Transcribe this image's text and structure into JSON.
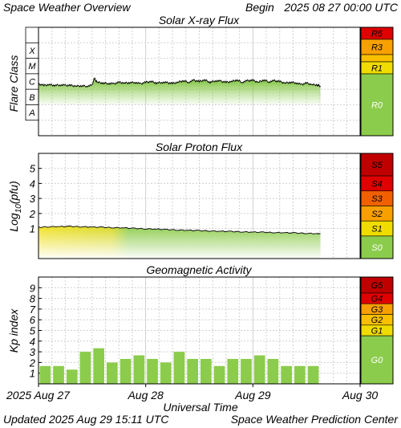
{
  "header": {
    "title": "Space Weather Overview",
    "begin_label": "Begin",
    "begin_value": "2025 08 27 00:00 UTC"
  },
  "footer": {
    "updated_label": "Updated",
    "updated_value": "2025 Aug 29 15:11 UTC",
    "source": "Space Weather Prediction Center"
  },
  "colors": {
    "panel_border": "#000000",
    "grid": "#d0d0d0",
    "data_green": "#8ccc4c",
    "proton_yellow": "#f0e020",
    "scale_green": "#8ccc4c",
    "scale_yellow": "#f0dc00",
    "scale_orange": "#f8a000",
    "scale_red_orange": "#f06000",
    "scale_red": "#e00000",
    "scale_dark_red": "#c00000"
  },
  "chart_data": [
    {
      "type": "area",
      "title": "Solar X-ray Flux",
      "ylabel": "Flare Class",
      "y_scale": "log",
      "x_unit": "days since 2025 Aug 27 00:00 UTC",
      "xlim": [
        0,
        3
      ],
      "ylim": [
        -9,
        -2
      ],
      "class_labels": [
        "A",
        "B",
        "C",
        "M",
        "X"
      ],
      "scale_labels": [
        "R5",
        "R3",
        "R1",
        "R0"
      ],
      "series": [
        {
          "name": "",
          "x": [
            0,
            0.05,
            0.1,
            0.15,
            0.2,
            0.25,
            0.3,
            0.35,
            0.4,
            0.45,
            0.5,
            0.52,
            0.55,
            0.6,
            0.65,
            0.7,
            0.75,
            0.8,
            0.85,
            0.9,
            0.95,
            1.0,
            1.05,
            1.1,
            1.15,
            1.2,
            1.25,
            1.3,
            1.35,
            1.4,
            1.45,
            1.5,
            1.55,
            1.6,
            1.65,
            1.7,
            1.75,
            1.8,
            1.85,
            1.9,
            1.95,
            2.0,
            2.05,
            2.1,
            2.15,
            2.2,
            2.25,
            2.3,
            2.35,
            2.4,
            2.45,
            2.5,
            2.55,
            2.6,
            2.63
          ],
          "y": [
            -5.65,
            -5.75,
            -5.7,
            -5.75,
            -5.72,
            -5.75,
            -5.75,
            -5.8,
            -5.78,
            -5.8,
            -5.75,
            -5.3,
            -5.55,
            -5.6,
            -5.62,
            -5.65,
            -5.55,
            -5.6,
            -5.58,
            -5.55,
            -5.65,
            -5.55,
            -5.5,
            -5.6,
            -5.55,
            -5.58,
            -5.62,
            -5.55,
            -5.45,
            -5.55,
            -5.42,
            -5.5,
            -5.4,
            -5.55,
            -5.45,
            -5.48,
            -5.55,
            -5.5,
            -5.4,
            -5.55,
            -5.45,
            -5.42,
            -5.55,
            -5.4,
            -5.52,
            -5.45,
            -5.5,
            -5.6,
            -5.55,
            -5.58,
            -5.7,
            -5.6,
            -5.7,
            -5.72,
            -5.8
          ]
        }
      ]
    },
    {
      "type": "area",
      "title": "Solar Proton Flux",
      "ylabel": "Log10(pfu)",
      "xlim": [
        0,
        3
      ],
      "ylim": [
        -1,
        6
      ],
      "yticks": [
        1,
        2,
        3,
        4,
        5
      ],
      "scale_labels": [
        "S5",
        "S4",
        "S3",
        "S2",
        "S1",
        "S0"
      ],
      "series": [
        {
          "name": "",
          "x": [
            0,
            0.1,
            0.2,
            0.3,
            0.4,
            0.5,
            0.6,
            0.7,
            0.8,
            0.9,
            1.0,
            1.1,
            1.2,
            1.3,
            1.4,
            1.5,
            1.6,
            1.7,
            1.8,
            1.9,
            2.0,
            2.1,
            2.2,
            2.3,
            2.4,
            2.5,
            2.6,
            2.63
          ],
          "y": [
            1.08,
            1.12,
            1.13,
            1.14,
            1.12,
            1.1,
            1.08,
            1.06,
            1.04,
            1.01,
            0.98,
            0.96,
            0.93,
            0.9,
            0.88,
            0.86,
            0.84,
            0.82,
            0.8,
            0.78,
            0.76,
            0.75,
            0.73,
            0.72,
            0.7,
            0.68,
            0.66,
            0.65
          ]
        }
      ]
    },
    {
      "type": "bar",
      "title": "Geomagnetic Activity",
      "ylabel": "Kp index",
      "xlabel": "Universal Time",
      "xlim": [
        0,
        3
      ],
      "ylim": [
        0,
        10
      ],
      "yticks": [
        1,
        2,
        3,
        4,
        5,
        6,
        7,
        8,
        9
      ],
      "x_tick_labels": [
        "2025 Aug 27",
        "Aug 28",
        "Aug 29",
        "Aug 30"
      ],
      "scale_labels": [
        "G5",
        "G4",
        "G3",
        "G2",
        "G1",
        "G0"
      ],
      "values": [
        1.67,
        1.67,
        1.33,
        3.0,
        3.33,
        2.0,
        2.33,
        2.67,
        2.33,
        2.0,
        3.0,
        2.33,
        2.33,
        1.67,
        2.33,
        2.33,
        2.67,
        2.33,
        1.67,
        1.67,
        1.67
      ]
    }
  ]
}
